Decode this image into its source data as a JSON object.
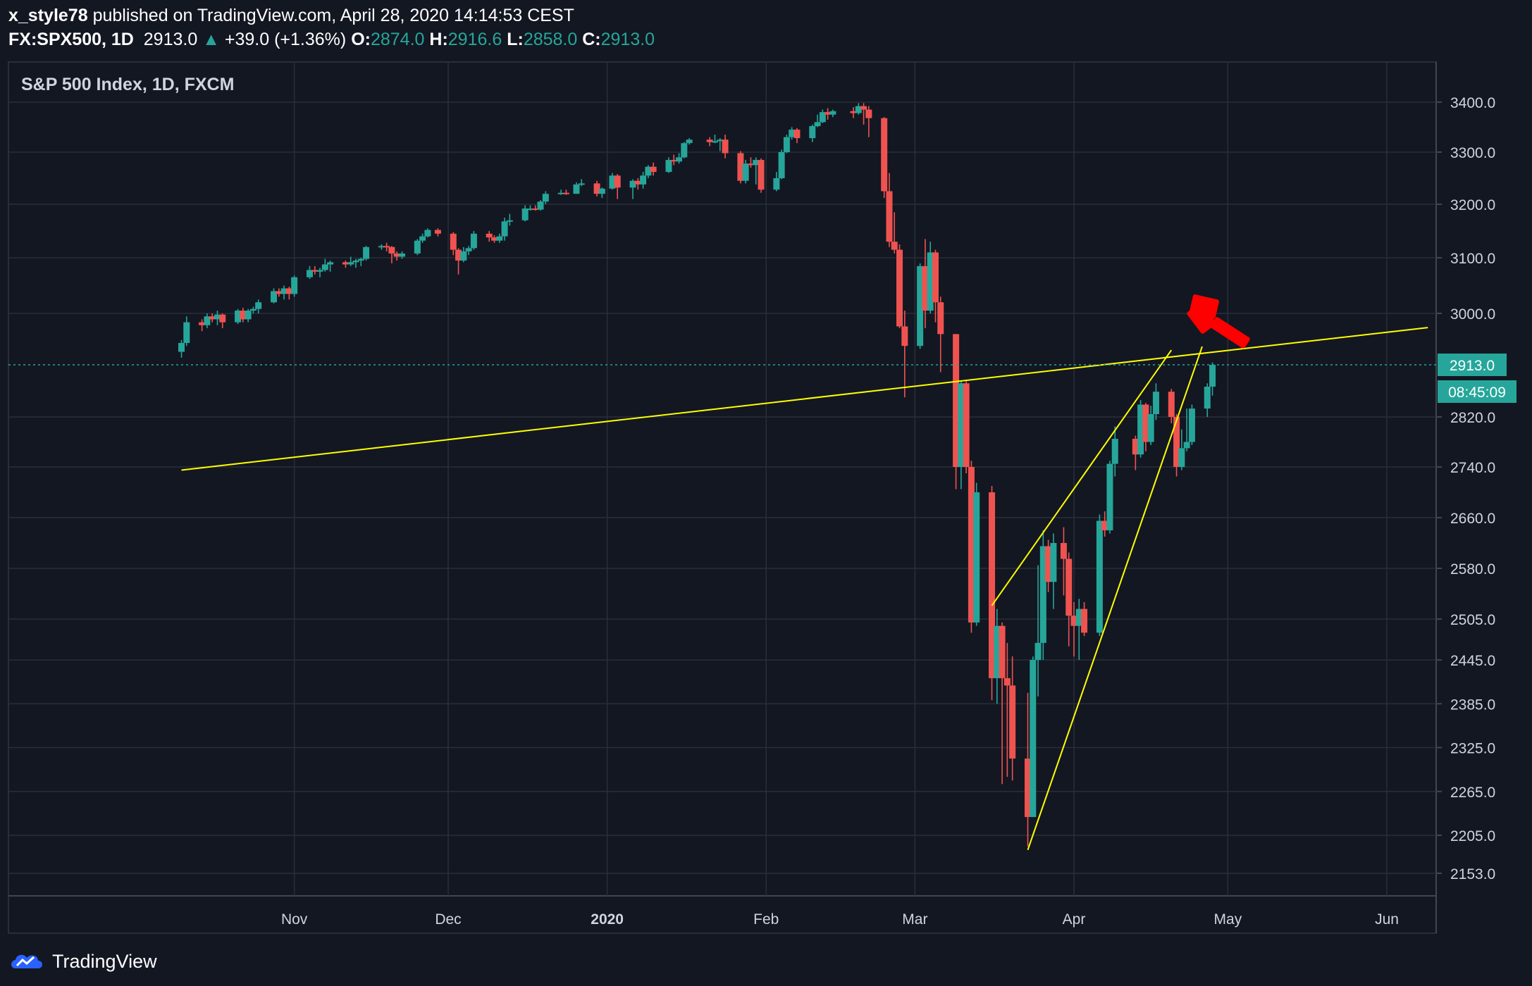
{
  "header": {
    "author": "x_style78",
    "published_text": "published on TradingView.com, April 28, 2020 14:14:53 CEST",
    "symbol": "FX:SPX500, 1D",
    "last": "2913.0",
    "change": "+39.0 (+1.36%)",
    "open_label": "O:",
    "open": "2874.0",
    "high_label": "H:",
    "high": "2916.6",
    "low_label": "L:",
    "low": "2858.0",
    "close_label": "C:",
    "close": "2913.0"
  },
  "footer": {
    "brand": "TradingView"
  },
  "colors": {
    "background": "#131722",
    "grid": "#2a2e39",
    "axis_text": "#d1d4dc",
    "up": "#26a69a",
    "down": "#ef5350",
    "trendline": "#ffff00",
    "arrow": "#ff0000"
  },
  "chart_data": {
    "type": "candlestick",
    "title": "S&P 500 Index, 1D, FXCM",
    "y_ticks": [
      3400,
      3300,
      3200,
      3100,
      3000,
      2820,
      2740,
      2660,
      2580,
      2505,
      2445,
      2385,
      2325,
      2265,
      2205,
      2153
    ],
    "x_ticks": [
      {
        "label": "Nov",
        "date": "2019-11-01"
      },
      {
        "label": "Dec",
        "date": "2019-12-01"
      },
      {
        "label": "2020",
        "date": "2020-01-01"
      },
      {
        "label": "Feb",
        "date": "2020-02-01"
      },
      {
        "label": "Mar",
        "date": "2020-03-01"
      },
      {
        "label": "Apr",
        "date": "2020-04-01"
      },
      {
        "label": "May",
        "date": "2020-05-01"
      },
      {
        "label": "Jun",
        "date": "2020-06-01"
      }
    ],
    "last_price_label": "2913.0",
    "countdown_label": "08:45:09",
    "candles": [
      [
        "2019-10-10",
        2935,
        2955,
        2925,
        2950
      ],
      [
        "2019-10-11",
        2950,
        2995,
        2945,
        2985
      ],
      [
        "2019-10-14",
        2985,
        2990,
        2970,
        2980
      ],
      [
        "2019-10-15",
        2980,
        3000,
        2975,
        2995
      ],
      [
        "2019-10-16",
        2995,
        3000,
        2985,
        2990
      ],
      [
        "2019-10-17",
        2990,
        3005,
        2980,
        2998
      ],
      [
        "2019-10-18",
        2998,
        3000,
        2975,
        2985
      ],
      [
        "2019-10-21",
        2985,
        3008,
        2982,
        3005
      ],
      [
        "2019-10-22",
        3005,
        3010,
        2985,
        2990
      ],
      [
        "2019-10-23",
        2990,
        3008,
        2985,
        3005
      ],
      [
        "2019-10-24",
        3005,
        3012,
        3000,
        3008
      ],
      [
        "2019-10-25",
        3008,
        3025,
        3000,
        3020
      ],
      [
        "2019-10-28",
        3020,
        3045,
        3018,
        3040
      ],
      [
        "2019-10-29",
        3040,
        3045,
        3030,
        3035
      ],
      [
        "2019-10-30",
        3035,
        3050,
        3025,
        3045
      ],
      [
        "2019-10-31",
        3045,
        3048,
        3025,
        3035
      ],
      [
        "2019-11-01",
        3035,
        3068,
        3030,
        3065
      ],
      [
        "2019-11-04",
        3065,
        3085,
        3062,
        3078
      ],
      [
        "2019-11-05",
        3078,
        3085,
        3070,
        3075
      ],
      [
        "2019-11-06",
        3075,
        3082,
        3065,
        3078
      ],
      [
        "2019-11-07",
        3078,
        3098,
        3075,
        3088
      ],
      [
        "2019-11-08",
        3088,
        3095,
        3075,
        3092
      ],
      [
        "2019-11-11",
        3092,
        3095,
        3082,
        3088
      ],
      [
        "2019-11-12",
        3088,
        3102,
        3085,
        3092
      ],
      [
        "2019-11-13",
        3092,
        3098,
        3082,
        3095
      ],
      [
        "2019-11-14",
        3095,
        3100,
        3085,
        3098
      ],
      [
        "2019-11-15",
        3098,
        3122,
        3095,
        3120
      ],
      [
        "2019-11-18",
        3120,
        3125,
        3115,
        3122
      ],
      [
        "2019-11-19",
        3122,
        3128,
        3112,
        3120
      ],
      [
        "2019-11-20",
        3120,
        3122,
        3090,
        3108
      ],
      [
        "2019-11-21",
        3108,
        3112,
        3095,
        3102
      ],
      [
        "2019-11-22",
        3102,
        3112,
        3098,
        3108
      ],
      [
        "2019-11-25",
        3108,
        3135,
        3105,
        3132
      ],
      [
        "2019-11-26",
        3132,
        3145,
        3128,
        3140
      ],
      [
        "2019-11-27",
        3140,
        3155,
        3138,
        3152
      ],
      [
        "2019-11-29",
        3152,
        3155,
        3140,
        3145
      ],
      [
        "2019-12-02",
        3145,
        3148,
        3105,
        3115
      ],
      [
        "2019-12-03",
        3115,
        3118,
        3070,
        3095
      ],
      [
        "2019-12-04",
        3095,
        3120,
        3092,
        3112
      ],
      [
        "2019-12-05",
        3112,
        3122,
        3105,
        3118
      ],
      [
        "2019-12-06",
        3118,
        3150,
        3115,
        3145
      ],
      [
        "2019-12-09",
        3145,
        3150,
        3130,
        3138
      ],
      [
        "2019-12-10",
        3138,
        3142,
        3128,
        3132
      ],
      [
        "2019-12-11",
        3132,
        3145,
        3128,
        3140
      ],
      [
        "2019-12-12",
        3140,
        3175,
        3132,
        3168
      ],
      [
        "2019-12-13",
        3168,
        3182,
        3160,
        3170
      ],
      [
        "2019-12-16",
        3170,
        3198,
        3168,
        3192
      ],
      [
        "2019-12-17",
        3192,
        3198,
        3188,
        3192
      ],
      [
        "2019-12-18",
        3192,
        3198,
        3188,
        3190
      ],
      [
        "2019-12-19",
        3190,
        3208,
        3188,
        3205
      ],
      [
        "2019-12-20",
        3205,
        3225,
        3200,
        3220
      ],
      [
        "2019-12-23",
        3220,
        3228,
        3218,
        3222
      ],
      [
        "2019-12-24",
        3222,
        3228,
        3218,
        3220
      ],
      [
        "2019-12-26",
        3220,
        3242,
        3220,
        3238
      ],
      [
        "2019-12-27",
        3238,
        3248,
        3235,
        3240
      ],
      [
        "2019-12-30",
        3240,
        3245,
        3215,
        3220
      ],
      [
        "2019-12-31",
        3220,
        3232,
        3212,
        3230
      ],
      [
        "2020-01-02",
        3230,
        3260,
        3228,
        3255
      ],
      [
        "2020-01-03",
        3255,
        3258,
        3210,
        3232
      ],
      [
        "2020-01-06",
        3232,
        3248,
        3210,
        3245
      ],
      [
        "2020-01-07",
        3245,
        3250,
        3228,
        3238
      ],
      [
        "2020-01-08",
        3238,
        3262,
        3230,
        3255
      ],
      [
        "2020-01-09",
        3255,
        3275,
        3250,
        3272
      ],
      [
        "2020-01-10",
        3272,
        3280,
        3255,
        3262
      ],
      [
        "2020-01-13",
        3262,
        3290,
        3260,
        3285
      ],
      [
        "2020-01-14",
        3285,
        3295,
        3275,
        3282
      ],
      [
        "2020-01-15",
        3282,
        3298,
        3278,
        3290
      ],
      [
        "2020-01-16",
        3290,
        3320,
        3288,
        3318
      ],
      [
        "2020-01-17",
        3318,
        3328,
        3315,
        3325
      ],
      [
        "2020-01-21",
        3325,
        3330,
        3312,
        3320
      ],
      [
        "2020-01-22",
        3320,
        3335,
        3318,
        3322
      ],
      [
        "2020-01-23",
        3322,
        3328,
        3302,
        3325
      ],
      [
        "2020-01-24",
        3325,
        3335,
        3288,
        3298
      ],
      [
        "2020-01-27",
        3298,
        3302,
        3240,
        3245
      ],
      [
        "2020-01-28",
        3245,
        3285,
        3240,
        3278
      ],
      [
        "2020-01-29",
        3278,
        3290,
        3270,
        3275
      ],
      [
        "2020-01-30",
        3275,
        3290,
        3238,
        3285
      ],
      [
        "2020-01-31",
        3285,
        3288,
        3222,
        3228
      ],
      [
        "2020-02-03",
        3228,
        3262,
        3225,
        3250
      ],
      [
        "2020-02-04",
        3250,
        3305,
        3248,
        3300
      ],
      [
        "2020-02-05",
        3300,
        3335,
        3298,
        3330
      ],
      [
        "2020-02-06",
        3330,
        3350,
        3325,
        3345
      ],
      [
        "2020-02-07",
        3345,
        3348,
        3318,
        3328
      ],
      [
        "2020-02-10",
        3328,
        3355,
        3320,
        3352
      ],
      [
        "2020-02-11",
        3352,
        3375,
        3350,
        3360
      ],
      [
        "2020-02-12",
        3360,
        3385,
        3358,
        3380
      ],
      [
        "2020-02-13",
        3380,
        3388,
        3365,
        3375
      ],
      [
        "2020-02-14",
        3375,
        3385,
        3370,
        3382
      ],
      [
        "2020-02-18",
        3382,
        3390,
        3368,
        3378
      ],
      [
        "2020-02-19",
        3378,
        3398,
        3375,
        3392
      ],
      [
        "2020-02-20",
        3392,
        3398,
        3355,
        3385
      ],
      [
        "2020-02-21",
        3385,
        3392,
        3330,
        3368
      ],
      [
        "2020-02-24",
        3368,
        3370,
        3212,
        3225
      ],
      [
        "2020-02-25",
        3225,
        3260,
        3120,
        3130
      ],
      [
        "2020-02-26",
        3130,
        3185,
        3108,
        3115
      ],
      [
        "2020-02-27",
        3115,
        3125,
        2975,
        2978
      ],
      [
        "2020-02-28",
        2978,
        3005,
        2855,
        2945
      ],
      [
        "2020-03-02",
        2945,
        3090,
        2940,
        3085
      ],
      [
        "2020-03-03",
        3085,
        3135,
        2975,
        3005
      ],
      [
        "2020-03-04",
        3005,
        3130,
        3000,
        3110
      ],
      [
        "2020-03-05",
        3110,
        3115,
        2985,
        3020
      ],
      [
        "2020-03-06",
        3020,
        3030,
        2900,
        2965
      ],
      [
        "2020-03-09",
        2965,
        2965,
        2705,
        2740
      ],
      [
        "2020-03-10",
        2740,
        2885,
        2705,
        2880
      ],
      [
        "2020-03-11",
        2880,
        2885,
        2730,
        2740
      ],
      [
        "2020-03-12",
        2740,
        2750,
        2485,
        2500
      ],
      [
        "2020-03-13",
        2500,
        2715,
        2495,
        2700
      ],
      [
        "2020-03-16",
        2700,
        2710,
        2390,
        2420
      ],
      [
        "2020-03-17",
        2420,
        2520,
        2385,
        2495
      ],
      [
        "2020-03-18",
        2495,
        2500,
        2275,
        2420
      ],
      [
        "2020-03-19",
        2420,
        2470,
        2285,
        2410
      ],
      [
        "2020-03-20",
        2410,
        2450,
        2280,
        2310
      ],
      [
        "2020-03-23",
        2310,
        2400,
        2190,
        2230
      ],
      [
        "2020-03-24",
        2230,
        2450,
        2230,
        2445
      ],
      [
        "2020-03-25",
        2445,
        2585,
        2395,
        2470
      ],
      [
        "2020-03-26",
        2470,
        2640,
        2445,
        2615
      ],
      [
        "2020-03-27",
        2615,
        2625,
        2545,
        2560
      ],
      [
        "2020-03-28",
        2560,
        2635,
        2520,
        2620
      ],
      [
        "2020-03-30",
        2620,
        2645,
        2540,
        2595
      ],
      [
        "2020-03-31",
        2595,
        2605,
        2465,
        2510
      ],
      [
        "2020-04-01",
        2510,
        2530,
        2450,
        2495
      ],
      [
        "2020-04-02",
        2495,
        2535,
        2445,
        2520
      ],
      [
        "2020-04-03",
        2520,
        2530,
        2480,
        2485
      ],
      [
        "2020-04-06",
        2485,
        2665,
        2480,
        2655
      ],
      [
        "2020-04-07",
        2655,
        2670,
        2630,
        2640
      ],
      [
        "2020-04-08",
        2640,
        2750,
        2635,
        2745
      ],
      [
        "2020-04-09",
        2745,
        2805,
        2725,
        2785
      ],
      [
        "2020-04-13",
        2785,
        2790,
        2735,
        2760
      ],
      [
        "2020-04-14",
        2760,
        2850,
        2755,
        2842
      ],
      [
        "2020-04-15",
        2842,
        2845,
        2765,
        2780
      ],
      [
        "2020-04-16",
        2780,
        2840,
        2775,
        2825
      ],
      [
        "2020-04-17",
        2825,
        2880,
        2815,
        2865
      ],
      [
        "2020-04-20",
        2865,
        2870,
        2810,
        2820
      ],
      [
        "2020-04-21",
        2820,
        2825,
        2725,
        2740
      ],
      [
        "2020-04-22",
        2740,
        2800,
        2735,
        2770
      ],
      [
        "2020-04-23",
        2770,
        2835,
        2765,
        2780
      ],
      [
        "2020-04-24",
        2780,
        2842,
        2775,
        2835
      ],
      [
        "2020-04-27",
        2835,
        2880,
        2820,
        2874
      ],
      [
        "2020-04-28",
        2874,
        2917,
        2858,
        2913
      ]
    ],
    "trendlines": [
      {
        "name": "long-support",
        "from": {
          "date": "2019-10-10",
          "price": 2735
        },
        "to": {
          "date": "2020-06-09",
          "price": 2976
        }
      },
      {
        "name": "wedge-upper",
        "from": {
          "date": "2020-03-16",
          "price": 2525
        },
        "to": {
          "date": "2020-04-20",
          "price": 2938
        }
      },
      {
        "name": "wedge-lower",
        "from": {
          "date": "2020-03-23",
          "price": 2185
        },
        "to": {
          "date": "2020-04-26",
          "price": 2944
        }
      }
    ]
  }
}
